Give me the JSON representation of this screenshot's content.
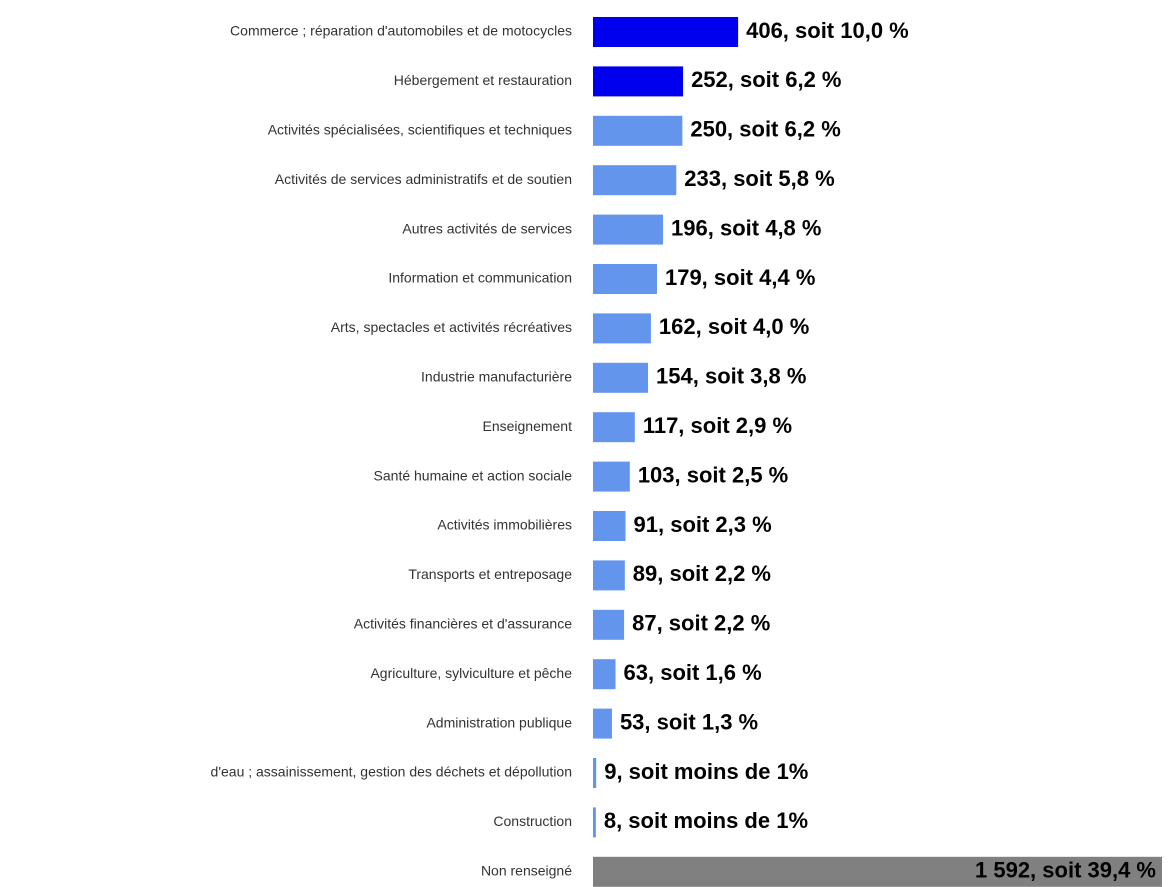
{
  "chart_data": {
    "type": "bar",
    "orientation": "horizontal",
    "categories": [
      "Commerce ; réparation d'automobiles et de motocycles",
      "Hébergement et restauration",
      "Activités spécialisées, scientifiques et techniques",
      "Activités de services administratifs et de soutien",
      "Autres activités de services",
      "Information et communication",
      "Arts, spectacles et activités récréatives",
      "Industrie manufacturière",
      "Enseignement",
      "Santé humaine et action sociale",
      "Activités immobilières",
      "Transports et entreposage",
      "Activités financières et d'assurance",
      "Agriculture, sylviculture et pêche",
      "Administration publique",
      "d'eau ; assainissement, gestion des déchets et dépollution",
      "Construction",
      "Non renseigné"
    ],
    "values": [
      406,
      252,
      250,
      233,
      196,
      179,
      162,
      154,
      117,
      103,
      91,
      89,
      87,
      63,
      53,
      9,
      8,
      1592
    ],
    "value_labels": [
      "406, soit 10,0 %",
      "252, soit 6,2 %",
      "250, soit 6,2 %",
      "233, soit 5,8 %",
      "196, soit 4,8 %",
      "179, soit 4,4 %",
      "162, soit 4,0 %",
      "154, soit 3,8 %",
      "117, soit 2,9 %",
      "103, soit 2,5 %",
      "91, soit 2,3 %",
      "89, soit 2,2 %",
      "87, soit 2,2 %",
      "63, soit 1,6 %",
      "53, soit 1,3 %",
      "9, soit moins de 1%",
      "8, soit moins de 1%",
      "1 592, soit 39,4 %"
    ],
    "colors": [
      "#0000ee",
      "#0000ee",
      "#6495ed",
      "#6495ed",
      "#6495ed",
      "#6495ed",
      "#6495ed",
      "#6495ed",
      "#6495ed",
      "#6495ed",
      "#6495ed",
      "#6495ed",
      "#6495ed",
      "#6495ed",
      "#6495ed",
      "#6495ed",
      "#6495ed",
      "#808080"
    ]
  }
}
